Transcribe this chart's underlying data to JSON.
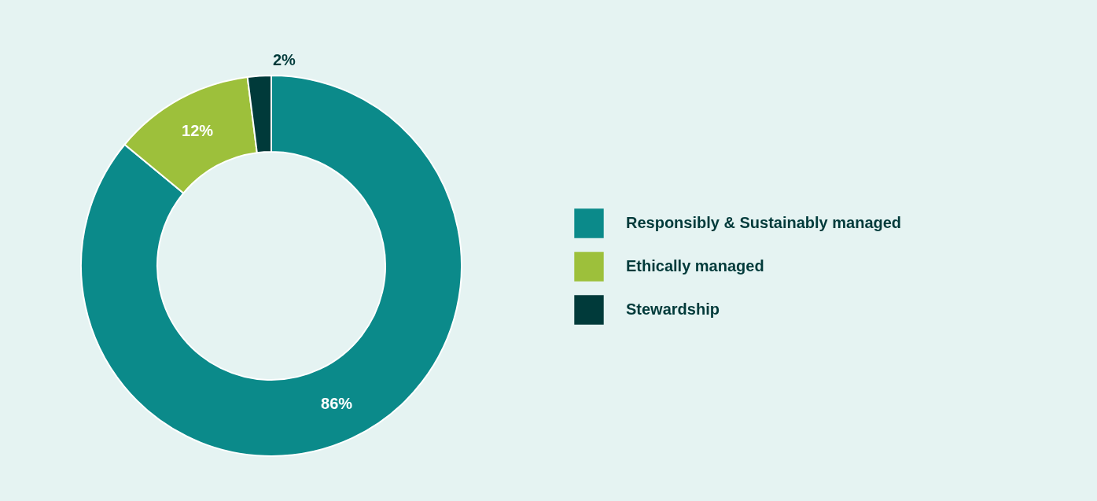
{
  "chart_data": {
    "type": "donut",
    "categories": [
      "Responsibly & Sustainably managed",
      "Ethically managed",
      "Stewardship"
    ],
    "values": [
      86,
      12,
      2
    ],
    "colors": [
      "#0b8a8a",
      "#9dc03b",
      "#003a3a"
    ],
    "value_labels": [
      "86%",
      "12%",
      "2%"
    ],
    "legend": "right"
  }
}
